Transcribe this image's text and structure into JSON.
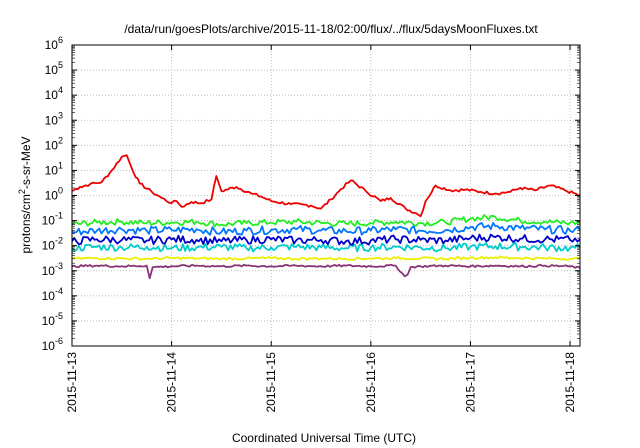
{
  "chart_data": {
    "type": "line",
    "title": "/data/run/goesPlots/archive/2015-11-18/02:00/flux/../flux/5daysMoonFluxes.txt",
    "xlabel": "Coordinated Universal Time (UTC)",
    "ylabel_parts": {
      "pre": "protons/cm",
      "sup": "2",
      "post": "-s-sr-MeV"
    },
    "x_tick_labels": [
      "2015-11-13",
      "2015-11-14",
      "2015-11-15",
      "2015-11-16",
      "2015-11-17",
      "2015-11-18"
    ],
    "y_tick_labels": [
      {
        "base": "10",
        "exp": "6"
      },
      {
        "base": "10",
        "exp": "5"
      },
      {
        "base": "10",
        "exp": "4"
      },
      {
        "base": "10",
        "exp": "3"
      },
      {
        "base": "10",
        "exp": "2"
      },
      {
        "base": "10",
        "exp": "1"
      },
      {
        "base": "10",
        "exp": "0"
      },
      {
        "base": "10",
        "exp": "-1"
      },
      {
        "base": "10",
        "exp": "-2"
      },
      {
        "base": "10",
        "exp": "-3"
      },
      {
        "base": "10",
        "exp": "-4"
      },
      {
        "base": "10",
        "exp": "-5"
      },
      {
        "base": "10",
        "exp": "-6"
      }
    ],
    "x_range_days": [
      0,
      5.1
    ],
    "x_origin": "2015-11-13",
    "ylim": [
      1e-06,
      1000000.0
    ],
    "yscale": "log",
    "grid": true,
    "series": [
      {
        "color": "#ee0000",
        "x": [
          0,
          0.08,
          0.18,
          0.3,
          0.4,
          0.5,
          0.55,
          0.6,
          0.68,
          0.8,
          0.9,
          1.0,
          1.05,
          1.1,
          1.2,
          1.3,
          1.4,
          1.45,
          1.5,
          1.65,
          1.8,
          1.9,
          2.0,
          2.2,
          2.4,
          2.5,
          2.6,
          2.7,
          2.8,
          2.95,
          3.1,
          3.2,
          3.35,
          3.45,
          3.5,
          3.55,
          3.65,
          3.8,
          3.95,
          4.1,
          4.25,
          4.4,
          4.5,
          4.65,
          4.8,
          4.95,
          5.1
        ],
        "y": [
          1.5,
          2.2,
          2.8,
          3.5,
          10,
          35,
          40,
          12,
          3,
          1.4,
          0.8,
          0.5,
          0.6,
          0.35,
          0.55,
          0.5,
          0.7,
          6,
          1.5,
          2.2,
          1.2,
          0.9,
          0.6,
          0.45,
          0.4,
          0.3,
          0.7,
          1.8,
          4,
          1.5,
          0.6,
          0.8,
          0.3,
          0.2,
          0.15,
          0.6,
          2.5,
          1.6,
          1.7,
          1.4,
          1.2,
          1.4,
          2.0,
          1.6,
          2.5,
          1.6,
          1.0
        ]
      },
      {
        "color": "#22ee22",
        "x": [
          0,
          0.25,
          0.5,
          0.75,
          1.0,
          1.25,
          1.5,
          1.75,
          2.0,
          2.25,
          2.5,
          2.75,
          3.0,
          3.25,
          3.5,
          3.75,
          4.0,
          4.25,
          4.5,
          4.75,
          5.0,
          5.1
        ],
        "y": [
          0.07,
          0.085,
          0.09,
          0.08,
          0.085,
          0.09,
          0.07,
          0.08,
          0.085,
          0.09,
          0.08,
          0.075,
          0.08,
          0.09,
          0.08,
          0.085,
          0.12,
          0.14,
          0.1,
          0.09,
          0.08,
          0.085
        ]
      },
      {
        "color": "#0077ff",
        "x": [
          0,
          0.25,
          0.5,
          0.75,
          1.0,
          1.25,
          1.5,
          1.75,
          2.0,
          2.25,
          2.5,
          2.75,
          3.0,
          3.25,
          3.5,
          3.75,
          4.0,
          4.25,
          4.5,
          4.75,
          5.0,
          5.1
        ],
        "y": [
          0.035,
          0.04,
          0.045,
          0.04,
          0.042,
          0.045,
          0.035,
          0.04,
          0.042,
          0.045,
          0.04,
          0.038,
          0.04,
          0.045,
          0.04,
          0.042,
          0.055,
          0.06,
          0.05,
          0.045,
          0.04,
          0.042
        ]
      },
      {
        "color": "#00cccc",
        "x": [
          0,
          0.25,
          0.5,
          0.75,
          1.0,
          1.25,
          1.5,
          1.75,
          2.0,
          2.25,
          2.5,
          2.75,
          3.0,
          3.25,
          3.5,
          3.75,
          4.0,
          4.25,
          4.5,
          4.75,
          5.0,
          5.1
        ],
        "y": [
          0.008,
          0.009,
          0.0085,
          0.009,
          0.008,
          0.0085,
          0.009,
          0.008,
          0.0085,
          0.009,
          0.0085,
          0.008,
          0.0085,
          0.009,
          0.0085,
          0.008,
          0.009,
          0.0095,
          0.009,
          0.0085,
          0.008,
          0.0085
        ]
      },
      {
        "color": "#0000cc",
        "x": [
          0,
          0.25,
          0.5,
          0.75,
          1.0,
          1.25,
          1.5,
          1.75,
          2.0,
          2.25,
          2.5,
          2.75,
          3.0,
          3.25,
          3.5,
          3.75,
          4.0,
          4.25,
          4.5,
          4.75,
          5.0,
          5.1
        ],
        "y": [
          0.015,
          0.018,
          0.017,
          0.016,
          0.018,
          0.017,
          0.015,
          0.017,
          0.018,
          0.016,
          0.017,
          0.015,
          0.016,
          0.018,
          0.017,
          0.016,
          0.02,
          0.022,
          0.019,
          0.018,
          0.017,
          0.018
        ]
      },
      {
        "color": "#eeee00",
        "x": [
          0,
          0.25,
          0.5,
          0.75,
          1.0,
          1.25,
          1.5,
          1.75,
          2.0,
          2.25,
          2.5,
          2.75,
          3.0,
          3.25,
          3.5,
          3.75,
          4.0,
          4.25,
          4.5,
          4.75,
          5.0,
          5.1
        ],
        "y": [
          0.003,
          0.0032,
          0.0031,
          0.003,
          0.0032,
          0.0031,
          0.003,
          0.0031,
          0.0032,
          0.003,
          0.0031,
          0.003,
          0.0031,
          0.0032,
          0.0031,
          0.003,
          0.0033,
          0.0034,
          0.0032,
          0.0031,
          0.003,
          0.0031
        ]
      },
      {
        "color": "#883377",
        "x": [
          0,
          0.25,
          0.5,
          0.75,
          0.78,
          0.81,
          1.0,
          1.25,
          1.5,
          1.75,
          2.0,
          2.25,
          2.5,
          2.75,
          3.0,
          3.25,
          3.34,
          3.37,
          3.4,
          3.5,
          3.75,
          4.0,
          4.25,
          4.5,
          4.75,
          5.0,
          5.1
        ],
        "y": [
          0.0015,
          0.0016,
          0.0015,
          0.0016,
          0.0005,
          0.0014,
          0.0015,
          0.0016,
          0.0015,
          0.0016,
          0.0015,
          0.0016,
          0.0015,
          0.0016,
          0.0015,
          0.0016,
          0.0006,
          0.0007,
          0.0014,
          0.0015,
          0.0016,
          0.0015,
          0.0016,
          0.0015,
          0.0016,
          0.0015,
          0.0013
        ]
      }
    ]
  }
}
